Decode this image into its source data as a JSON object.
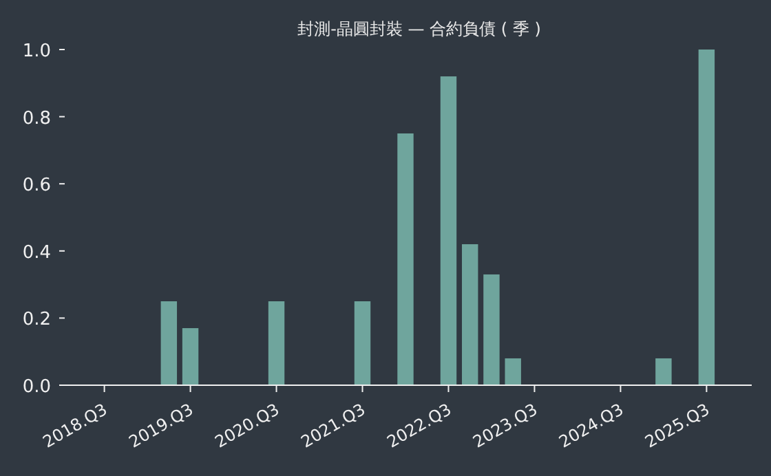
{
  "chart_data": {
    "type": "bar",
    "title": "封測-晶圓封裝 — 合約負債 ( 季 )",
    "categories": [
      "2018.Q3",
      null,
      null,
      null,
      "2019.Q3",
      null,
      null,
      null,
      "2020.Q3",
      null,
      null,
      null,
      "2021.Q3",
      null,
      null,
      null,
      "2022.Q3",
      null,
      null,
      null,
      "2023.Q3",
      null,
      null,
      null,
      "2024.Q3",
      null,
      null,
      null,
      "2025.Q3"
    ],
    "values": [
      null,
      null,
      null,
      0.25,
      0.17,
      null,
      null,
      null,
      0.25,
      null,
      null,
      null,
      0.25,
      null,
      0.75,
      null,
      0.92,
      0.42,
      0.33,
      0.08,
      null,
      null,
      null,
      null,
      null,
      null,
      0.08,
      null,
      1.0
    ],
    "color": "#6fa59d",
    "ylim": [
      0,
      1.0
    ],
    "yticks": [
      {
        "value": 0,
        "label": "0.0"
      },
      0.2,
      0.4,
      0.6,
      0.8,
      {
        "value": 1,
        "label": "1.0"
      }
    ],
    "grid": false
  }
}
